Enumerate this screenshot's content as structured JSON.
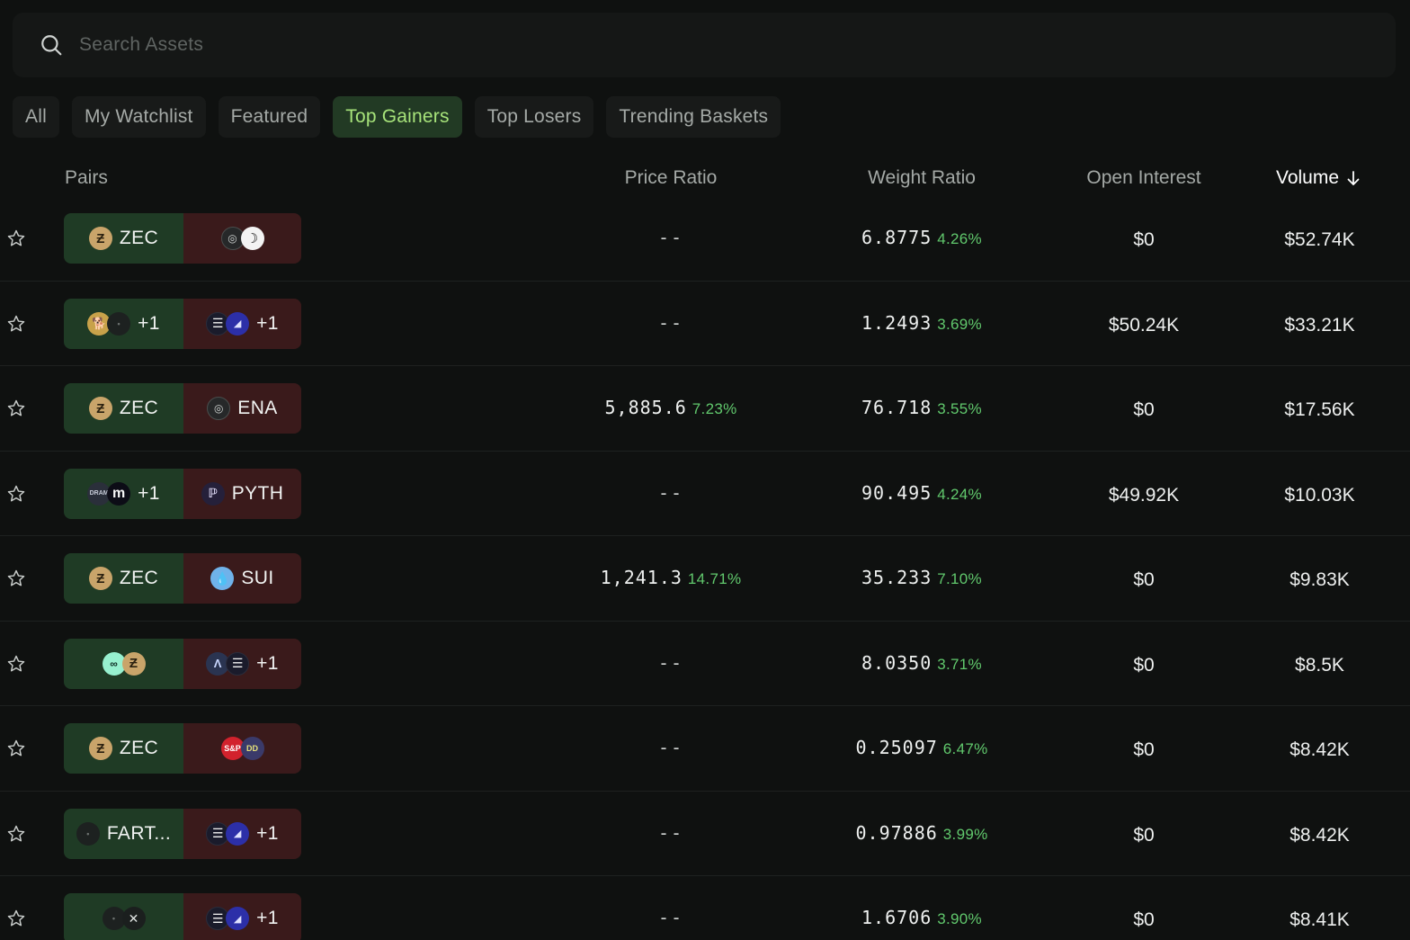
{
  "search": {
    "placeholder": "Search Assets"
  },
  "tabs": [
    {
      "label": "All",
      "active": false
    },
    {
      "label": "My Watchlist",
      "active": false
    },
    {
      "label": "Featured",
      "active": false
    },
    {
      "label": "Top Gainers",
      "active": true
    },
    {
      "label": "Top Losers",
      "active": false
    },
    {
      "label": "Trending Baskets",
      "active": false
    }
  ],
  "table": {
    "headers": {
      "pairs": "Pairs",
      "price_ratio": "Price Ratio",
      "weight_ratio": "Weight Ratio",
      "open_interest": "Open Interest",
      "volume": "Volume",
      "volume_sort": "↓"
    },
    "rows": [
      {
        "long": {
          "coins": [
            "zec"
          ],
          "label": "ZEC",
          "extra": ""
        },
        "short": {
          "coins": [
            "ena",
            "moon"
          ],
          "label": "",
          "extra": ""
        },
        "price_ratio": "--",
        "price_change": "",
        "weight_ratio": "6.8775",
        "weight_change": "4.26%",
        "open_interest": "$0",
        "volume": "$52.74K"
      },
      {
        "long": {
          "coins": [
            "doge",
            "dark"
          ],
          "label": "",
          "extra": "+1"
        },
        "short": {
          "coins": [
            "menu",
            "blue"
          ],
          "label": "",
          "extra": "+1"
        },
        "price_ratio": "--",
        "price_change": "",
        "weight_ratio": "1.2493",
        "weight_change": "3.69%",
        "open_interest": "$50.24K",
        "volume": "$33.21K"
      },
      {
        "long": {
          "coins": [
            "zec"
          ],
          "label": "ZEC",
          "extra": ""
        },
        "short": {
          "coins": [
            "ena"
          ],
          "label": "ENA",
          "extra": ""
        },
        "price_ratio": "5,885.6",
        "price_change": "7.23%",
        "weight_ratio": "76.718",
        "weight_change": "3.55%",
        "open_interest": "$0",
        "volume": "$17.56K"
      },
      {
        "long": {
          "coins": [
            "dram",
            "monad"
          ],
          "label": "",
          "extra": "+1"
        },
        "short": {
          "coins": [
            "pyth"
          ],
          "label": "PYTH",
          "extra": ""
        },
        "price_ratio": "--",
        "price_change": "",
        "weight_ratio": "90.495",
        "weight_change": "4.24%",
        "open_interest": "$49.92K",
        "volume": "$10.03K"
      },
      {
        "long": {
          "coins": [
            "zec"
          ],
          "label": "ZEC",
          "extra": ""
        },
        "short": {
          "coins": [
            "sui"
          ],
          "label": "SUI",
          "extra": ""
        },
        "price_ratio": "1,241.3",
        "price_change": "14.71%",
        "weight_ratio": "35.233",
        "weight_change": "7.10%",
        "open_interest": "$0",
        "volume": "$9.83K"
      },
      {
        "long": {
          "coins": [
            "hype",
            "zec"
          ],
          "label": "",
          "extra": ""
        },
        "short": {
          "coins": [
            "arb",
            "menu"
          ],
          "label": "",
          "extra": "+1"
        },
        "price_ratio": "--",
        "price_change": "",
        "weight_ratio": "8.0350",
        "weight_change": "3.71%",
        "open_interest": "$0",
        "volume": "$8.5K"
      },
      {
        "long": {
          "coins": [
            "zec"
          ],
          "label": "ZEC",
          "extra": ""
        },
        "short": {
          "coins": [
            "sp",
            "dd"
          ],
          "label": "",
          "extra": ""
        },
        "price_ratio": "--",
        "price_change": "",
        "weight_ratio": "0.25097",
        "weight_change": "6.47%",
        "open_interest": "$0",
        "volume": "$8.42K"
      },
      {
        "long": {
          "coins": [
            "dark"
          ],
          "label": "FART...",
          "extra": ""
        },
        "short": {
          "coins": [
            "menu",
            "blue"
          ],
          "label": "",
          "extra": "+1"
        },
        "price_ratio": "--",
        "price_change": "",
        "weight_ratio": "0.97886",
        "weight_change": "3.99%",
        "open_interest": "$0",
        "volume": "$8.42K"
      },
      {
        "long": {
          "coins": [
            "dark",
            "x"
          ],
          "label": "",
          "extra": ""
        },
        "short": {
          "coins": [
            "menu",
            "blue"
          ],
          "label": "",
          "extra": "+1"
        },
        "price_ratio": "--",
        "price_change": "",
        "weight_ratio": "1.6706",
        "weight_change": "3.90%",
        "open_interest": "$0",
        "volume": "$8.41K"
      }
    ]
  },
  "coin_icons": {
    "zec": {
      "glyph": "Ƶ",
      "name": "zcash-icon"
    },
    "ena": {
      "glyph": "◎",
      "name": "ethena-icon"
    },
    "moon": {
      "glyph": "☽",
      "name": "moon-logo-icon"
    },
    "doge": {
      "glyph": "🐕",
      "name": "doge-icon"
    },
    "dark": {
      "glyph": "•",
      "name": "dark-token-icon"
    },
    "menu": {
      "glyph": "☰",
      "name": "stacked-lines-token-icon"
    },
    "blue": {
      "glyph": "◢",
      "name": "blue-token-icon"
    },
    "dram": {
      "glyph": "DRAM",
      "name": "dram-icon"
    },
    "monad": {
      "glyph": "m",
      "name": "monad-icon"
    },
    "pyth": {
      "glyph": "ℙ",
      "name": "pyth-icon"
    },
    "sui": {
      "glyph": "💧",
      "name": "sui-icon"
    },
    "hype": {
      "glyph": "∞",
      "name": "hyperliquid-icon"
    },
    "arb": {
      "glyph": "Λ",
      "name": "arbitrum-icon"
    },
    "sp": {
      "glyph": "S&P",
      "name": "sp500-icon"
    },
    "dd": {
      "glyph": "DD",
      "name": "dd-token-icon"
    },
    "x": {
      "glyph": "✕",
      "name": "x-token-icon"
    }
  },
  "colors": {
    "background": "#0f1110",
    "long_bg": "#1f3b25",
    "short_bg": "#3a1a1b",
    "positive": "#61c96d",
    "active_tab_text": "#a7e37a",
    "active_tab_bg": "#223a24"
  }
}
